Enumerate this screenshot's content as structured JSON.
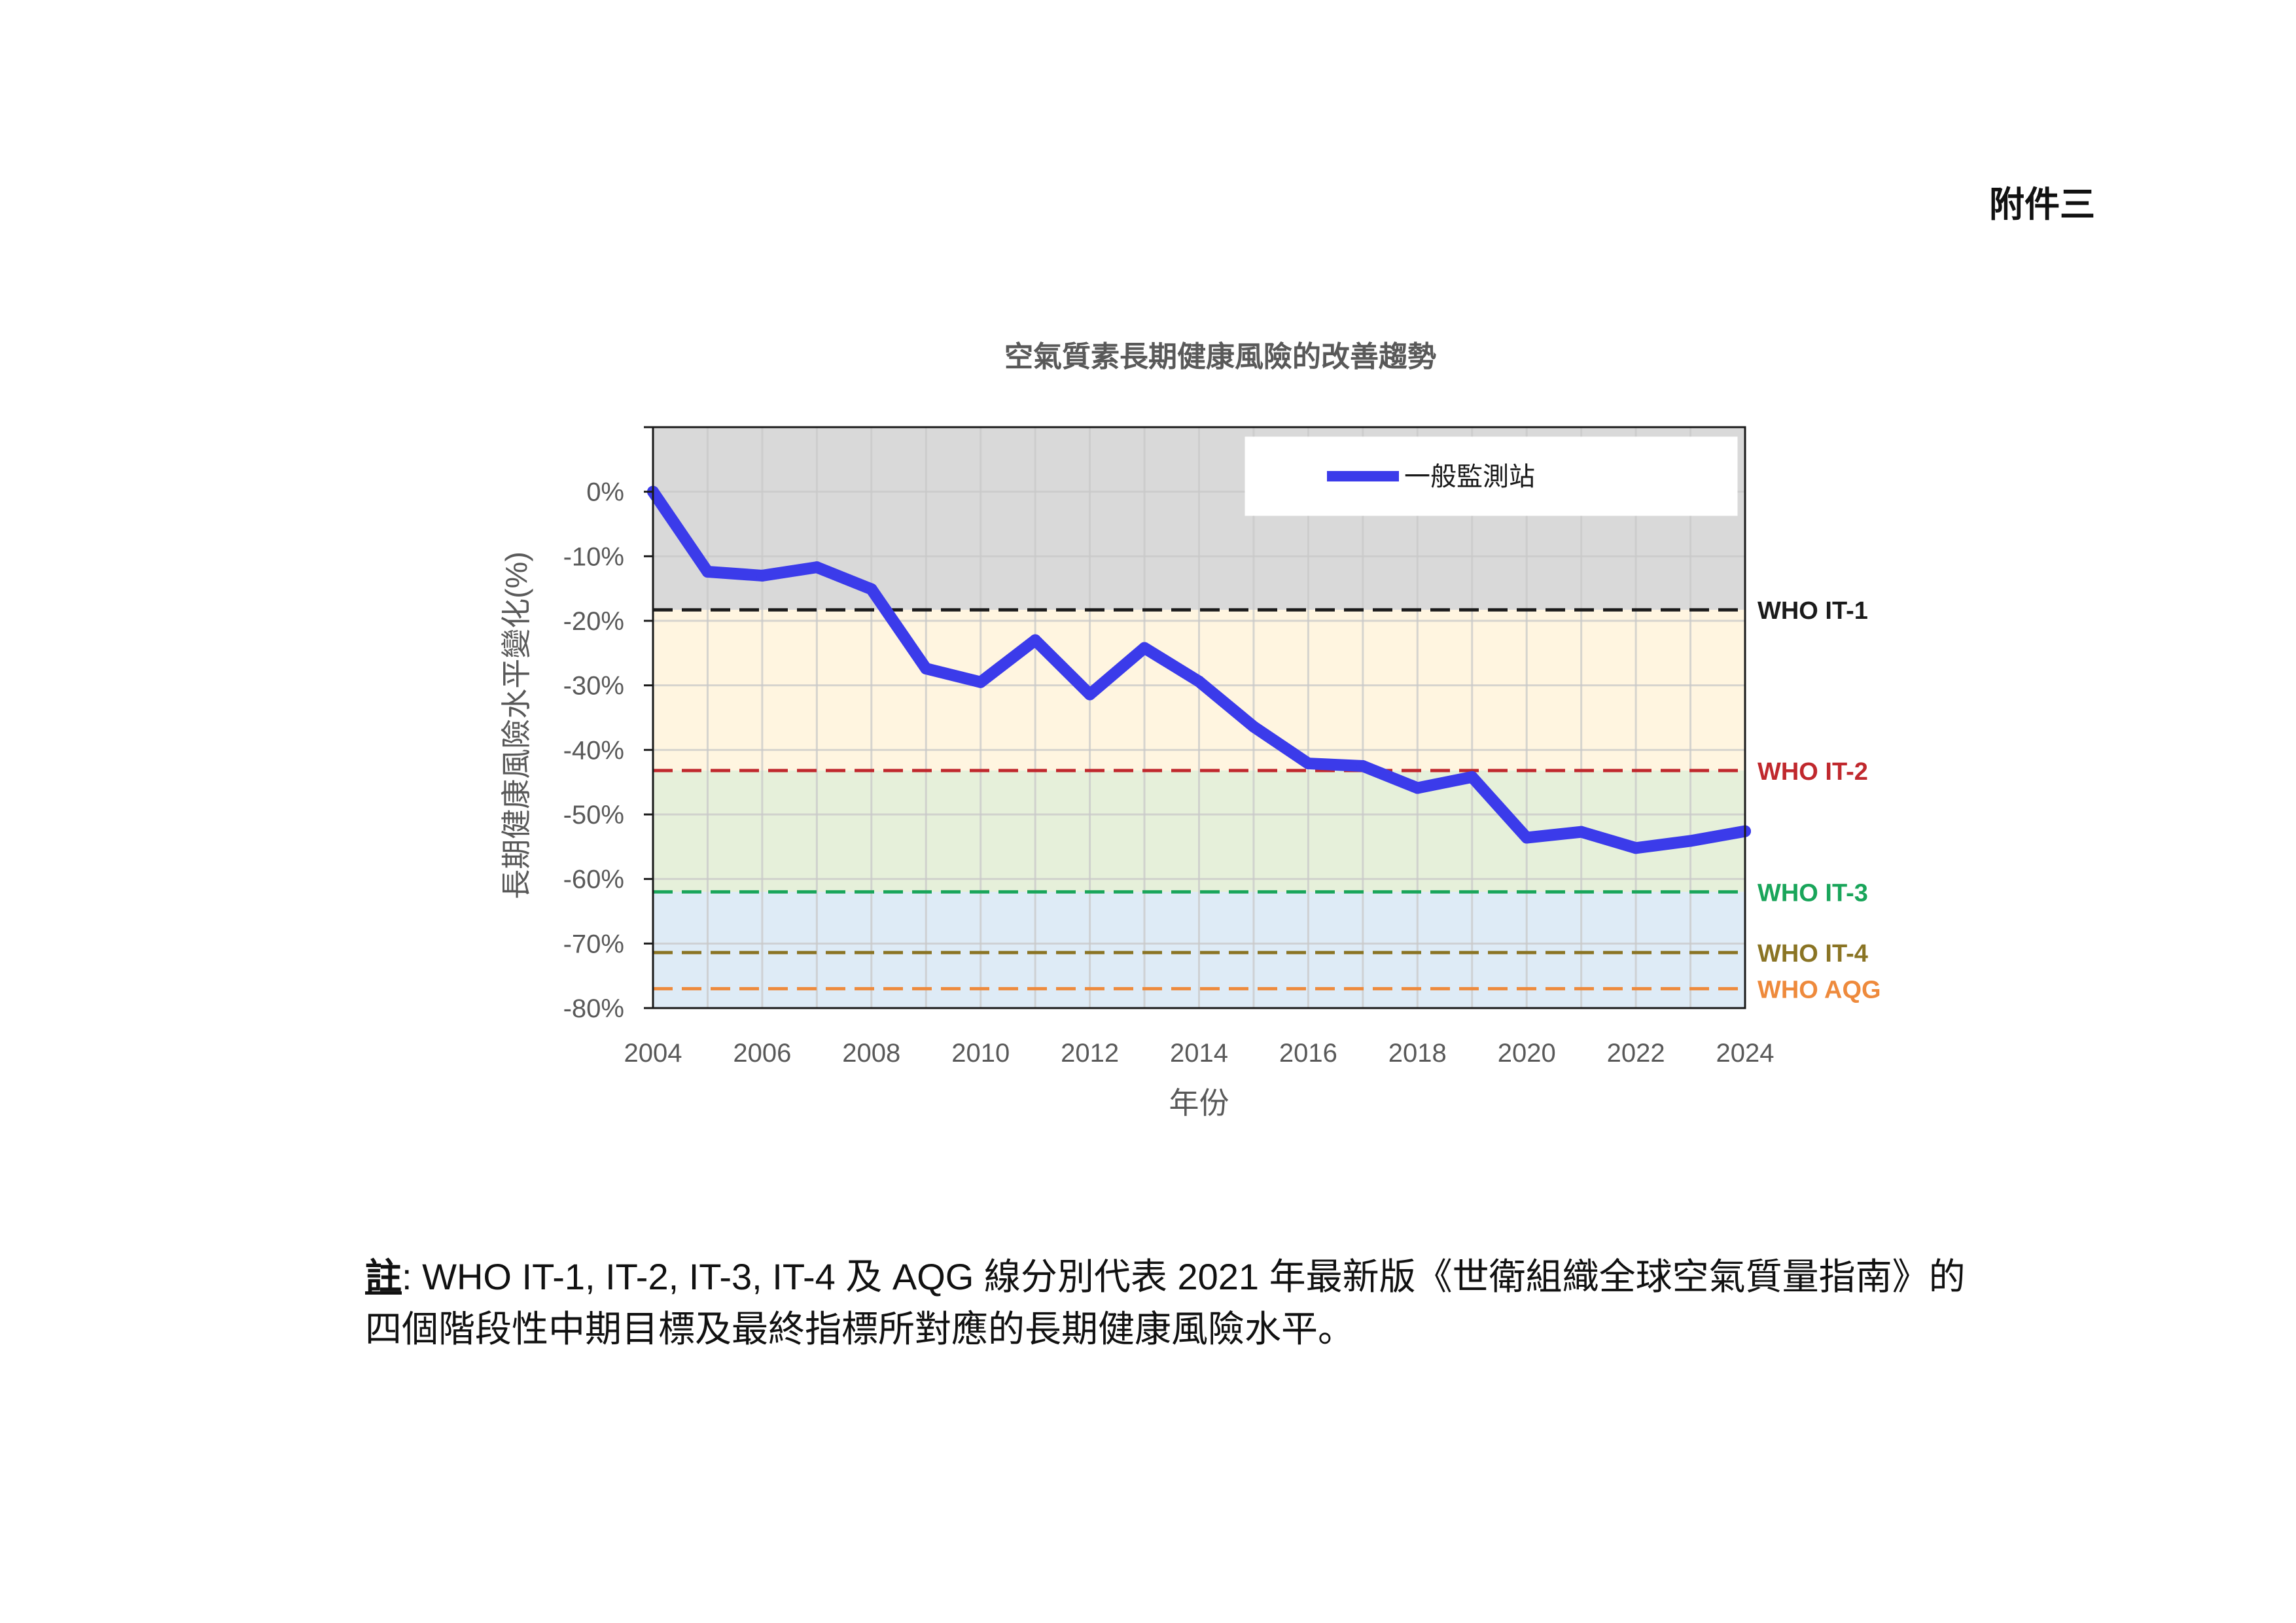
{
  "page": {
    "annex_label": "附件三",
    "note_mark": "註",
    "note_text": ": WHO IT-1, IT-2, IT-3, IT-4 及 AQG 線分別代表 2021 年最新版《世衛組織全球空氣質量指南》的四個階段性中期目標及最終指標所對應的長期健康風險水平。"
  },
  "chart_data": {
    "type": "line",
    "title": "空氣質素長期健康風險的改善趨勢",
    "xlabel": "年份",
    "ylabel": "長期健康風險水平變化(%)",
    "xlim": [
      2004,
      2024
    ],
    "ylim": [
      -80,
      10
    ],
    "x_ticks": [
      2004,
      2006,
      2008,
      2010,
      2012,
      2014,
      2016,
      2018,
      2020,
      2022,
      2024
    ],
    "y_ticks": [
      0,
      -10,
      -20,
      -30,
      -40,
      -50,
      -60,
      -70,
      -80
    ],
    "y_tick_labels": [
      "0%",
      "-10%",
      "-20%",
      "-30%",
      "-40%",
      "-50%",
      "-60%",
      "-70%",
      "-80%"
    ],
    "grid": true,
    "legend_position": "top-right",
    "series": [
      {
        "name": "一般監測站",
        "color": "#3b3bea",
        "x": [
          2004,
          2005,
          2006,
          2007,
          2008,
          2009,
          2010,
          2011,
          2012,
          2013,
          2014,
          2015,
          2016,
          2017,
          2018,
          2019,
          2020,
          2021,
          2022,
          2023,
          2024
        ],
        "values": [
          0,
          -12.4,
          -13,
          -11.7,
          -15.1,
          -27.4,
          -29.5,
          -23,
          -31.4,
          -24.2,
          -29.4,
          -36.4,
          -42.1,
          -42.5,
          -45.9,
          -44.2,
          -53.6,
          -52.7,
          -55.2,
          -54.1,
          -52.6
        ]
      }
    ],
    "reference_lines": [
      {
        "name": "WHO IT-1",
        "value": -18.3,
        "color": "#1b1b1b"
      },
      {
        "name": "WHO IT-2",
        "value": -43.2,
        "color": "#c0282d"
      },
      {
        "name": "WHO IT-3",
        "value": -62,
        "color": "#19a55a"
      },
      {
        "name": "WHO IT-4",
        "value": -71.4,
        "color": "#8a7424"
      },
      {
        "name": "WHO AQG",
        "value": -77,
        "color": "#ee8a3c"
      }
    ],
    "bands": [
      {
        "from": 10,
        "to": -18.3,
        "color": "#d9d9d9"
      },
      {
        "from": -18.3,
        "to": -43.2,
        "color": "#fff5e0"
      },
      {
        "from": -43.2,
        "to": -62,
        "color": "#e6f0da"
      },
      {
        "from": -62,
        "to": -80,
        "color": "#deebf6"
      }
    ]
  }
}
